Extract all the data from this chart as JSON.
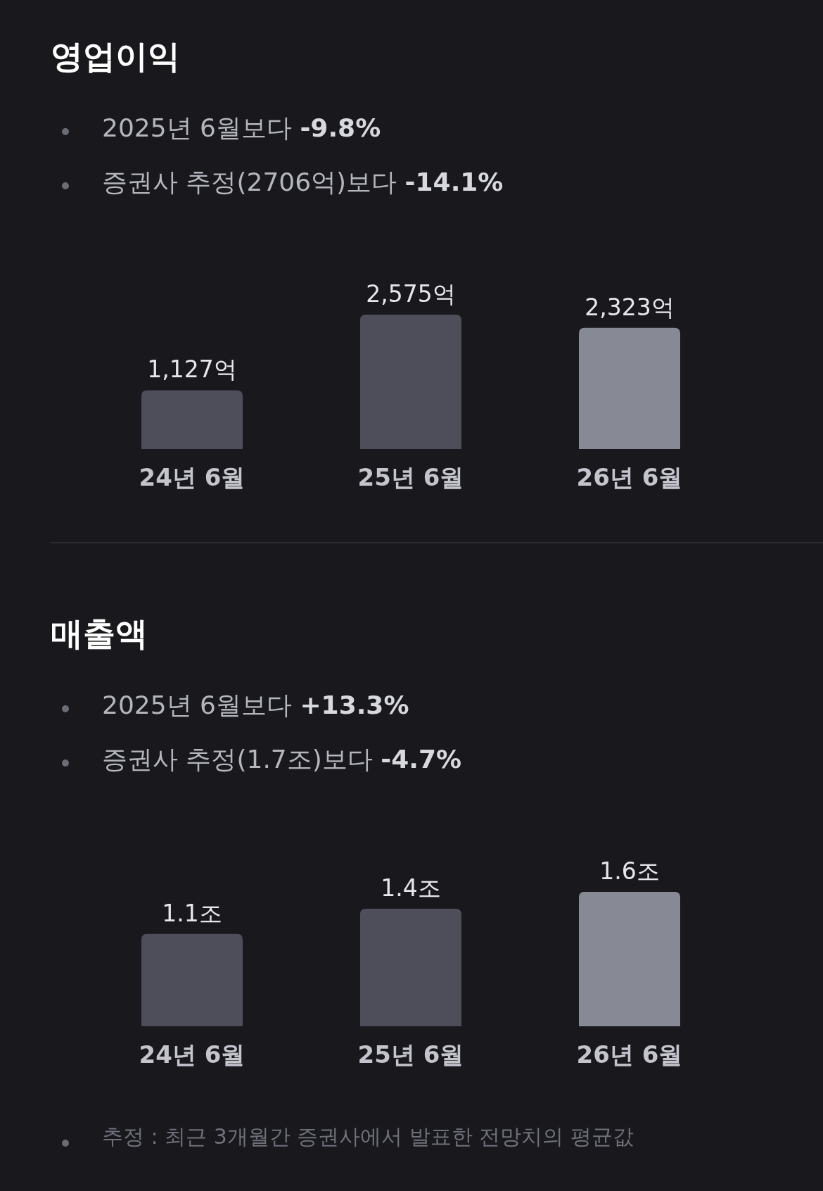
{
  "chart_data": [
    {
      "type": "bar",
      "title": "영업이익",
      "annotations": [
        "2025년 6월보다 **-9.8%**",
        "증권사 추정(2706억)보다 **-14.1%**"
      ],
      "categories": [
        "24년 6월",
        "25년 6월",
        "26년 6월"
      ],
      "values": [
        1127,
        2575,
        2323
      ],
      "value_labels": [
        "1,127억",
        "2,575억",
        "2,323억"
      ],
      "colors": [
        "#4d4e59",
        "#4d4e59",
        "#878a94"
      ]
    },
    {
      "type": "bar",
      "title": "매출액",
      "annotations": [
        "2025년 6월보다 **+13.3%**",
        "증권사 추정(1.7조)보다 **-4.7%**",
        "추정 : 최근 3개월간 증권사에서 발표한 전망치의 평균값"
      ],
      "categories": [
        "24년 6월",
        "25년 6월",
        "26년 6월"
      ],
      "values": [
        1.1,
        1.4,
        1.6
      ],
      "value_labels": [
        "1.1조",
        "1.4조",
        "1.6조"
      ],
      "colors": [
        "#4d4e59",
        "#4d4e59",
        "#878a94"
      ]
    }
  ]
}
